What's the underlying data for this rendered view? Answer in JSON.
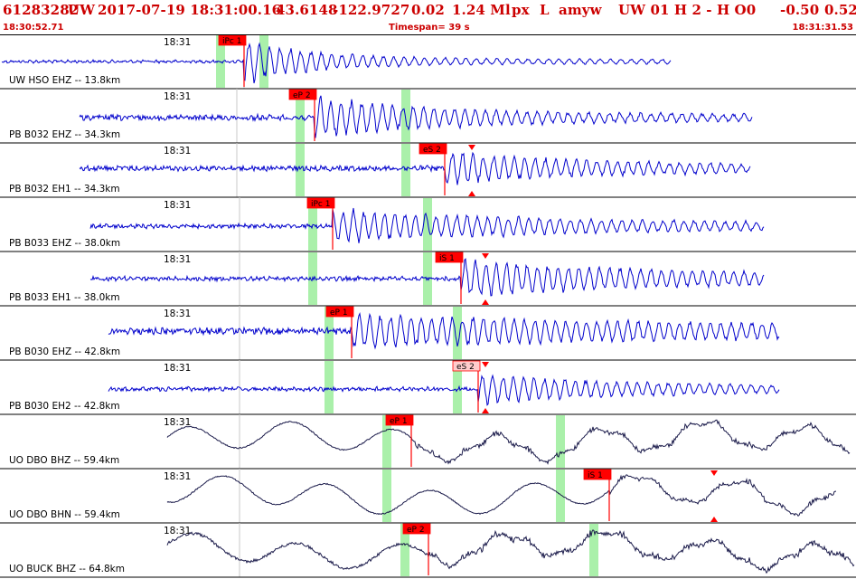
{
  "header": {
    "event_id": "61283282",
    "network": "UW",
    "datetime": "2017-07-19 18:31:00.16",
    "lat": "43.6148",
    "lon": "-122.9727",
    "depth": "0.02",
    "magnitude": "1.24 Ml",
    "px_label": "px",
    "type_code": "L",
    "analyst": "amyw",
    "right_block": "UW 01   H   2   -   H O0",
    "val1": "-0.50",
    "val2": "0.52",
    "start_time": "18:30:52.71",
    "timespan": "Timespan=  39 s",
    "end_time": "18:31:31.53"
  },
  "colors": {
    "header_text": "#cc0000",
    "trace_blue": "#0000cc",
    "trace_dark": "#1a1a4a",
    "pick_red": "#ff0000",
    "window_green": "#aaf0aa",
    "pick_label_pink": "#ffcccc"
  },
  "tick_label": "18:31",
  "traces": [
    {
      "label": "UW HSO EHZ -- 13.8km",
      "color": "blue",
      "picks": [
        {
          "text": "iPc 1",
          "style": "red"
        }
      ],
      "windows": 2,
      "has_triangles": false
    },
    {
      "label": "PB B032 EHZ -- 34.3km",
      "color": "blue",
      "picks": [
        {
          "text": "eP 2",
          "style": "red"
        }
      ],
      "windows": 2,
      "has_triangles": false
    },
    {
      "label": "PB B032 EH1 -- 34.3km",
      "color": "blue",
      "picks": [
        {
          "text": "eS 2",
          "style": "red"
        }
      ],
      "windows": 2,
      "has_triangles": true
    },
    {
      "label": "PB B033 EHZ -- 38.0km",
      "color": "blue",
      "picks": [
        {
          "text": "iPc 1",
          "style": "red"
        }
      ],
      "windows": 2,
      "has_triangles": false
    },
    {
      "label": "PB B033 EH1 -- 38.0km",
      "color": "blue",
      "picks": [
        {
          "text": "iS 1",
          "style": "red"
        }
      ],
      "windows": 2,
      "has_triangles": true
    },
    {
      "label": "PB B030 EHZ -- 42.8km",
      "color": "blue",
      "picks": [
        {
          "text": "eP 1",
          "style": "red"
        }
      ],
      "windows": 2,
      "has_triangles": false
    },
    {
      "label": "PB B030 EH2 -- 42.8km",
      "color": "blue",
      "picks": [
        {
          "text": "eS 2",
          "style": "pink"
        }
      ],
      "windows": 2,
      "has_triangles": true
    },
    {
      "label": "UO DBO BHZ -- 59.4km",
      "color": "dark",
      "picks": [
        {
          "text": "eP 1",
          "style": "red"
        }
      ],
      "windows": 2,
      "has_triangles": false
    },
    {
      "label": "UO DBO BHN -- 59.4km",
      "color": "dark",
      "picks": [
        {
          "text": "iS 1",
          "style": "red"
        }
      ],
      "windows": 2,
      "has_triangles": true
    },
    {
      "label": "UO BUCK BHZ -- 64.8km",
      "color": "dark",
      "picks": [
        {
          "text": "eP 2",
          "style": "red"
        }
      ],
      "windows": 2,
      "has_triangles": false
    }
  ]
}
